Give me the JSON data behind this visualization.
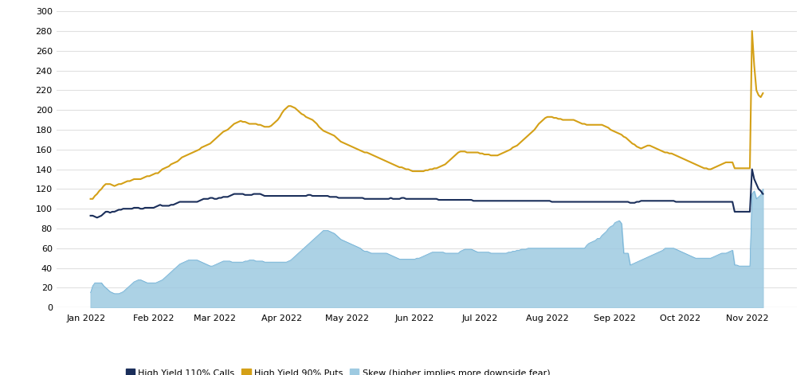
{
  "title": "",
  "background_color": "#ffffff",
  "grid_color": "#e0e0e0",
  "ylim": [
    0,
    300
  ],
  "yticks": [
    0,
    20,
    40,
    60,
    80,
    100,
    120,
    140,
    160,
    180,
    200,
    220,
    240,
    260,
    280,
    300
  ],
  "legend_labels": [
    "High Yield 110% Calls",
    "High Yield 90% Puts",
    "Skew (higher implies more downside fear)"
  ],
  "calls_color": "#1a2e5a",
  "puts_color": "#d4a017",
  "skew_color": "#6baed6",
  "skew_fill_color": "#9ecae1",
  "line_width": 1.5,
  "calls_data": [
    93,
    93,
    92,
    91,
    92,
    93,
    95,
    97,
    97,
    96,
    97,
    97,
    98,
    99,
    99,
    100,
    100,
    100,
    100,
    100,
    101,
    101,
    101,
    100,
    100,
    101,
    101,
    101,
    101,
    101,
    102,
    103,
    104,
    103,
    103,
    103,
    103,
    104,
    104,
    105,
    106,
    107,
    107,
    107,
    107,
    107,
    107,
    107,
    107,
    107,
    108,
    109,
    110,
    110,
    110,
    111,
    111,
    110,
    110,
    111,
    111,
    112,
    112,
    112,
    113,
    114,
    115,
    115,
    115,
    115,
    115,
    114,
    114,
    114,
    114,
    115,
    115,
    115,
    115,
    114,
    113,
    113,
    113,
    113,
    113,
    113,
    113,
    113,
    113,
    113,
    113,
    113,
    113,
    113,
    113,
    113,
    113,
    113,
    113,
    113,
    114,
    114,
    113,
    113,
    113,
    113,
    113,
    113,
    113,
    113,
    112,
    112,
    112,
    112,
    111,
    111,
    111,
    111,
    111,
    111,
    111,
    111,
    111,
    111,
    111,
    111,
    110,
    110,
    110,
    110,
    110,
    110,
    110,
    110,
    110,
    110,
    110,
    110,
    111,
    110,
    110,
    110,
    110,
    111,
    111,
    110,
    110,
    110,
    110,
    110,
    110,
    110,
    110,
    110,
    110,
    110,
    110,
    110,
    110,
    110,
    109,
    109,
    109,
    109,
    109,
    109,
    109,
    109,
    109,
    109,
    109,
    109,
    109,
    109,
    109,
    109,
    108,
    108,
    108,
    108,
    108,
    108,
    108,
    108,
    108,
    108,
    108,
    108,
    108,
    108,
    108,
    108,
    108,
    108,
    108,
    108,
    108,
    108,
    108,
    108,
    108,
    108,
    108,
    108,
    108,
    108,
    108,
    108,
    108,
    108,
    108,
    108,
    107,
    107,
    107,
    107,
    107,
    107,
    107,
    107,
    107,
    107,
    107,
    107,
    107,
    107,
    107,
    107,
    107,
    107,
    107,
    107,
    107,
    107,
    107,
    107,
    107,
    107,
    107,
    107,
    107,
    107,
    107,
    107,
    107,
    107,
    107,
    107,
    106,
    106,
    106,
    107,
    107,
    108,
    108,
    108,
    108,
    108,
    108,
    108,
    108,
    108,
    108,
    108,
    108,
    108,
    108,
    108,
    108,
    107,
    107,
    107,
    107,
    107,
    107,
    107,
    107,
    107,
    107,
    107,
    107,
    107,
    107,
    107,
    107,
    107,
    107,
    107,
    107,
    107,
    107,
    107,
    107,
    107,
    107,
    107,
    97,
    97,
    97,
    97,
    97,
    97,
    97,
    97,
    140,
    130,
    125,
    120,
    118,
    115
  ],
  "puts_data": [
    110,
    110,
    113,
    115,
    118,
    120,
    123,
    125,
    125,
    125,
    124,
    123,
    124,
    125,
    125,
    126,
    127,
    128,
    128,
    129,
    130,
    130,
    130,
    130,
    131,
    132,
    133,
    133,
    134,
    135,
    136,
    136,
    138,
    140,
    141,
    142,
    143,
    145,
    146,
    147,
    148,
    150,
    152,
    153,
    154,
    155,
    156,
    157,
    158,
    159,
    160,
    162,
    163,
    164,
    165,
    166,
    168,
    170,
    172,
    174,
    176,
    178,
    179,
    180,
    182,
    184,
    186,
    187,
    188,
    189,
    188,
    188,
    187,
    186,
    186,
    186,
    186,
    185,
    185,
    184,
    183,
    183,
    183,
    184,
    186,
    188,
    190,
    193,
    197,
    200,
    202,
    204,
    204,
    203,
    202,
    200,
    198,
    196,
    195,
    193,
    192,
    191,
    190,
    188,
    186,
    183,
    181,
    179,
    178,
    177,
    176,
    175,
    174,
    172,
    170,
    168,
    167,
    166,
    165,
    164,
    163,
    162,
    161,
    160,
    159,
    158,
    157,
    157,
    156,
    155,
    154,
    153,
    152,
    151,
    150,
    149,
    148,
    147,
    146,
    145,
    144,
    143,
    142,
    142,
    141,
    140,
    140,
    139,
    138,
    138,
    138,
    138,
    138,
    138,
    139,
    139,
    140,
    140,
    141,
    141,
    142,
    143,
    144,
    145,
    147,
    149,
    151,
    153,
    155,
    157,
    158,
    158,
    158,
    157,
    157,
    157,
    157,
    157,
    157,
    156,
    156,
    155,
    155,
    155,
    154,
    154,
    154,
    154,
    155,
    156,
    157,
    158,
    159,
    160,
    162,
    163,
    164,
    166,
    168,
    170,
    172,
    174,
    176,
    178,
    180,
    183,
    186,
    188,
    190,
    192,
    193,
    193,
    193,
    192,
    192,
    191,
    191,
    190,
    190,
    190,
    190,
    190,
    190,
    189,
    188,
    187,
    186,
    186,
    185,
    185,
    185,
    185,
    185,
    185,
    185,
    185,
    184,
    183,
    182,
    180,
    179,
    178,
    177,
    176,
    175,
    173,
    172,
    170,
    168,
    166,
    165,
    163,
    162,
    161,
    162,
    163,
    164,
    164,
    163,
    162,
    161,
    160,
    159,
    158,
    157,
    157,
    156,
    156,
    155,
    154,
    153,
    152,
    151,
    150,
    149,
    148,
    147,
    146,
    145,
    144,
    143,
    142,
    141,
    141,
    140,
    140,
    141,
    142,
    143,
    144,
    145,
    146,
    147,
    147,
    147,
    147,
    141,
    141,
    141,
    141,
    141,
    141,
    141,
    141,
    280,
    245,
    220,
    215,
    213,
    217
  ],
  "skew_data": [
    15,
    22,
    25,
    25,
    25,
    25,
    22,
    20,
    18,
    16,
    15,
    14,
    14,
    14,
    15,
    16,
    18,
    20,
    22,
    24,
    26,
    27,
    28,
    28,
    27,
    26,
    25,
    25,
    25,
    25,
    25,
    26,
    27,
    28,
    30,
    32,
    34,
    36,
    38,
    40,
    42,
    44,
    45,
    46,
    47,
    48,
    48,
    48,
    48,
    48,
    47,
    46,
    45,
    44,
    43,
    42,
    42,
    43,
    44,
    45,
    46,
    47,
    47,
    47,
    47,
    46,
    46,
    46,
    46,
    46,
    46,
    47,
    47,
    48,
    48,
    48,
    47,
    47,
    47,
    47,
    46,
    46,
    46,
    46,
    46,
    46,
    46,
    46,
    46,
    46,
    46,
    47,
    48,
    50,
    52,
    54,
    56,
    58,
    60,
    62,
    64,
    66,
    68,
    70,
    72,
    74,
    76,
    78,
    78,
    78,
    77,
    76,
    75,
    73,
    71,
    69,
    68,
    67,
    66,
    65,
    64,
    63,
    62,
    61,
    60,
    58,
    57,
    57,
    56,
    55,
    55,
    55,
    55,
    55,
    55,
    55,
    55,
    54,
    53,
    52,
    51,
    50,
    49,
    49,
    49,
    49,
    49,
    49,
    49,
    49,
    50,
    50,
    51,
    52,
    53,
    54,
    55,
    56,
    56,
    56,
    56,
    56,
    56,
    55,
    55,
    55,
    55,
    55,
    55,
    55,
    57,
    58,
    59,
    59,
    59,
    59,
    58,
    57,
    56,
    56,
    56,
    56,
    56,
    56,
    55,
    55,
    55,
    55,
    55,
    55,
    55,
    55,
    56,
    56,
    57,
    57,
    58,
    58,
    59,
    59,
    59,
    60,
    60,
    60,
    60,
    60,
    60,
    60,
    60,
    60,
    60,
    60,
    60,
    60,
    60,
    60,
    60,
    60,
    60,
    60,
    60,
    60,
    60,
    60,
    60,
    60,
    60,
    60,
    63,
    65,
    66,
    67,
    68,
    70,
    70,
    73,
    75,
    77,
    80,
    82,
    83,
    86,
    87,
    88,
    85,
    55,
    55,
    55,
    43,
    44,
    45,
    46,
    47,
    48,
    49,
    50,
    51,
    52,
    53,
    54,
    55,
    56,
    57,
    58,
    60,
    60,
    60,
    60,
    60,
    59,
    58,
    57,
    56,
    55,
    54,
    53,
    52,
    51,
    50,
    50,
    50,
    50,
    50,
    50,
    50,
    50,
    51,
    52,
    53,
    54,
    55,
    55,
    55,
    56,
    57,
    58,
    43,
    43,
    42,
    42,
    42,
    42,
    42,
    42,
    115,
    118,
    110,
    112,
    114,
    120
  ]
}
